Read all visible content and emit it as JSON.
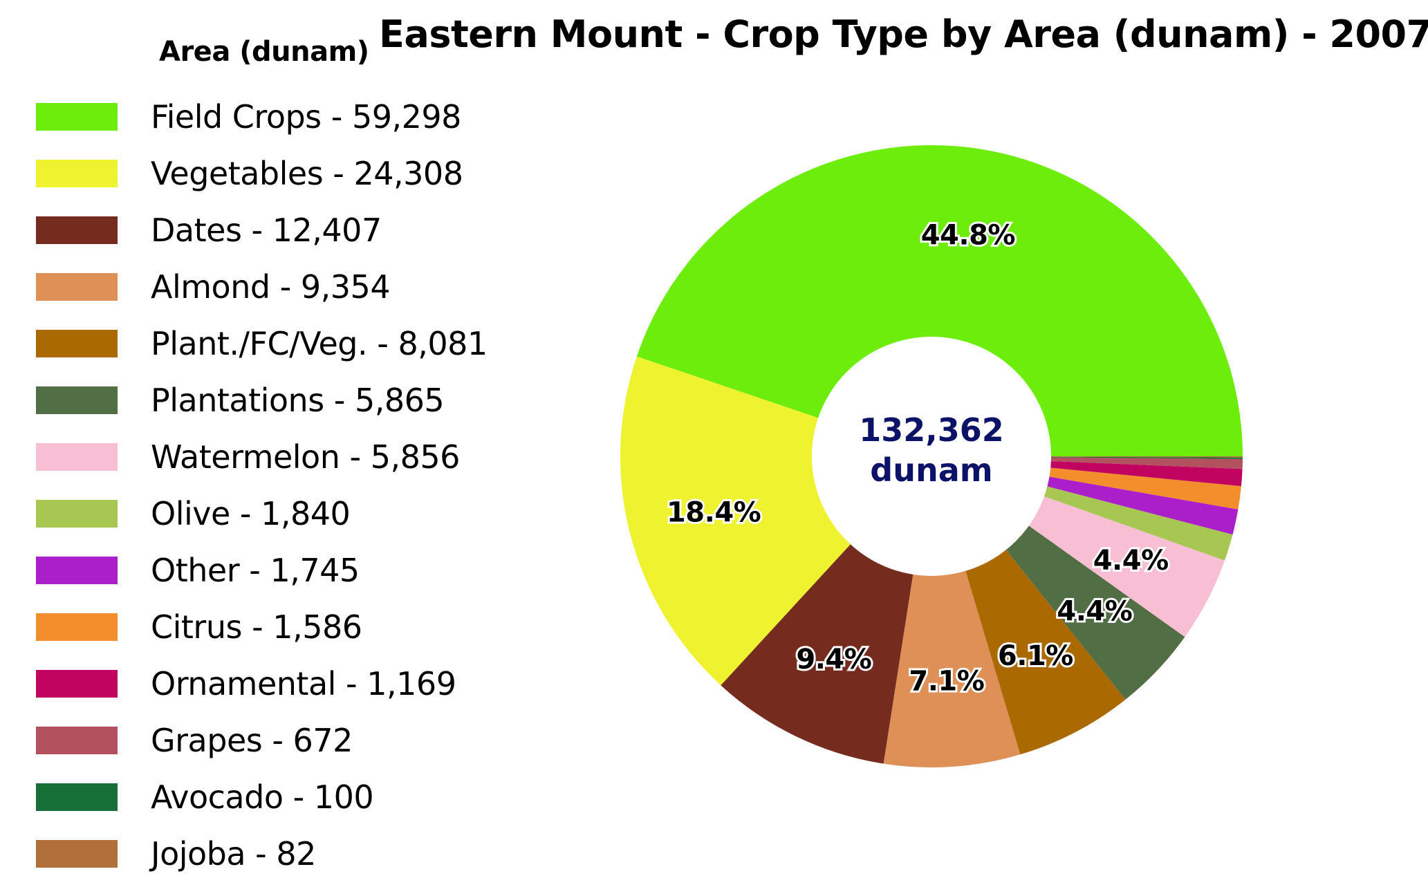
{
  "chart_data": {
    "type": "pie",
    "title": "Eastern Mount - Crop Type by Area (dunam) - 2007",
    "legend_title": "Area (dunam)",
    "legend_position": "left",
    "center_label": [
      "132,362",
      "dunam"
    ],
    "total": 132362,
    "slices": [
      {
        "label": "Field Crops - 59,298",
        "value": 59298,
        "color": "#6ced0c",
        "pct_label": "44.8%"
      },
      {
        "label": "Vegetables - 24,308",
        "value": 24308,
        "color": "#eef22f",
        "pct_label": "18.4%"
      },
      {
        "label": "Dates - 12,407",
        "value": 12407,
        "color": "#762b1f",
        "pct_label": "9.4%"
      },
      {
        "label": "Almond - 9,354",
        "value": 9354,
        "color": "#de9057",
        "pct_label": "7.1%"
      },
      {
        "label": "Plant./FC/Veg. - 8,081",
        "value": 8081,
        "color": "#ab6a01",
        "pct_label": "6.1%"
      },
      {
        "label": "Plantations - 5,865",
        "value": 5865,
        "color": "#526e45",
        "pct_label": "4.4%"
      },
      {
        "label": "Watermelon - 5,856",
        "value": 5856,
        "color": "#f8bfd4",
        "pct_label": "4.4%"
      },
      {
        "label": "Olive - 1,840",
        "value": 1840,
        "color": "#a8c752",
        "pct_label": ""
      },
      {
        "label": "Other - 1,745",
        "value": 1745,
        "color": "#ab1fca",
        "pct_label": ""
      },
      {
        "label": "Citrus - 1,586",
        "value": 1586,
        "color": "#f28e2c",
        "pct_label": ""
      },
      {
        "label": "Ornamental - 1,169",
        "value": 1169,
        "color": "#c0045f",
        "pct_label": ""
      },
      {
        "label": "Grapes - 672",
        "value": 672,
        "color": "#b3515e",
        "pct_label": ""
      },
      {
        "label": "Avocado - 100",
        "value": 100,
        "color": "#156f37",
        "pct_label": ""
      },
      {
        "label": "Jojoba - 82",
        "value": 82,
        "color": "#b06f3b",
        "pct_label": ""
      }
    ]
  }
}
